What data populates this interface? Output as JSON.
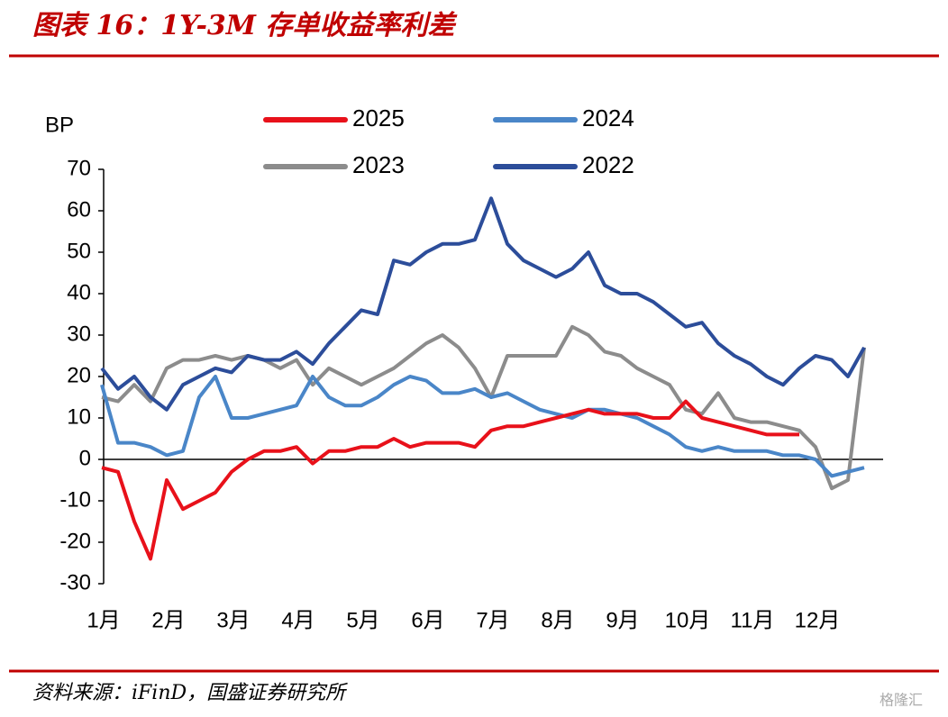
{
  "chart_data": {
    "type": "line",
    "title": "图表 16：1Y-3M 存单收益率利差",
    "y_label": "BP",
    "source": "资料来源：iFinD，国盛证券研究所",
    "watermark": "格隆汇",
    "categories": [
      "1月",
      null,
      null,
      null,
      "2月",
      null,
      null,
      null,
      "3月",
      null,
      null,
      null,
      "4月",
      null,
      null,
      null,
      "5月",
      null,
      null,
      null,
      "6月",
      null,
      null,
      null,
      "7月",
      null,
      null,
      null,
      "8月",
      null,
      null,
      null,
      "9月",
      null,
      null,
      null,
      "10月",
      null,
      null,
      null,
      "11月",
      null,
      null,
      null,
      "12月",
      null,
      null,
      null
    ],
    "ylim": [
      -30,
      70
    ],
    "yticks": [
      -30,
      -20,
      -10,
      0,
      10,
      20,
      30,
      40,
      50,
      60,
      70
    ],
    "grid": false,
    "series": [
      {
        "name": "2025",
        "color": "#e8111a",
        "values": [
          -2,
          -3,
          -15,
          -24,
          -5,
          -12,
          -10,
          -8,
          -3,
          0,
          2,
          2,
          3,
          -1,
          2,
          2,
          3,
          3,
          5,
          3,
          4,
          4,
          4,
          3,
          7,
          8,
          8,
          9,
          10,
          11,
          12,
          11,
          11,
          11,
          10,
          10,
          14,
          10,
          9,
          8,
          7,
          6,
          6,
          6,
          null,
          null,
          null,
          null
        ]
      },
      {
        "name": "2024",
        "color": "#4a86c8",
        "values": [
          18,
          4,
          4,
          3,
          1,
          2,
          15,
          20,
          10,
          10,
          11,
          12,
          13,
          20,
          15,
          13,
          13,
          15,
          18,
          20,
          19,
          16,
          16,
          17,
          15,
          16,
          14,
          12,
          11,
          10,
          12,
          12,
          11,
          10,
          8,
          6,
          3,
          2,
          3,
          2,
          2,
          2,
          1,
          1,
          0,
          -4,
          -3,
          -2
        ]
      },
      {
        "name": "2023",
        "color": "#8c8c8c",
        "values": [
          15,
          14,
          18,
          14,
          22,
          24,
          24,
          25,
          24,
          25,
          24,
          22,
          24,
          18,
          22,
          20,
          18,
          20,
          22,
          25,
          28,
          30,
          27,
          22,
          15,
          25,
          25,
          25,
          25,
          32,
          30,
          26,
          25,
          22,
          20,
          18,
          12,
          11,
          16,
          10,
          9,
          9,
          8,
          7,
          3,
          -7,
          -5,
          27
        ]
      },
      {
        "name": "2022",
        "color": "#2c4d9a",
        "values": [
          22,
          17,
          20,
          15,
          12,
          18,
          20,
          22,
          21,
          25,
          24,
          24,
          26,
          23,
          28,
          32,
          36,
          35,
          48,
          47,
          50,
          52,
          52,
          53,
          63,
          52,
          48,
          46,
          44,
          46,
          50,
          42,
          40,
          40,
          38,
          35,
          32,
          33,
          28,
          25,
          23,
          20,
          18,
          22,
          25,
          24,
          20,
          27
        ]
      }
    ]
  }
}
